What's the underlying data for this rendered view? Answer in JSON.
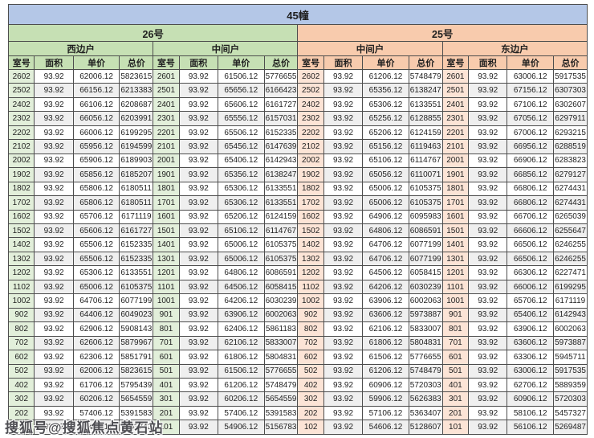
{
  "title": "45幢",
  "watermark": "搜狐号@搜狐焦点黄石站",
  "columns": [
    "室号",
    "面积",
    "单价",
    "总价"
  ],
  "colors": {
    "header_bg": "#b4c7e7",
    "green_bg": "#c6e0b4",
    "orange_bg": "#f8cbad",
    "room_green": "#e2efda",
    "room_orange": "#fce4d6",
    "stripe": "#efefef"
  },
  "sections": [
    {
      "label": "26号",
      "groups": [
        {
          "label": "西边户",
          "rows": [
            [
              "2602",
              "93.92",
              "62006.12",
              "5823615"
            ],
            [
              "2502",
              "93.92",
              "66156.12",
              "6213383"
            ],
            [
              "2402",
              "93.92",
              "66106.12",
              "6208687"
            ],
            [
              "2302",
              "93.92",
              "66056.12",
              "6203991"
            ],
            [
              "2202",
              "93.92",
              "66006.12",
              "6199295"
            ],
            [
              "2102",
              "93.92",
              "65956.12",
              "6194599"
            ],
            [
              "2002",
              "93.92",
              "65906.12",
              "6189903"
            ],
            [
              "1902",
              "93.92",
              "65856.12",
              "6185207"
            ],
            [
              "1802",
              "93.92",
              "65806.12",
              "6180511"
            ],
            [
              "1702",
              "93.92",
              "65806.12",
              "6180511"
            ],
            [
              "1602",
              "93.92",
              "65706.12",
              "6171119"
            ],
            [
              "1502",
              "93.92",
              "65606.12",
              "6161727"
            ],
            [
              "1402",
              "93.92",
              "65506.12",
              "6152335"
            ],
            [
              "1302",
              "93.92",
              "65506.12",
              "6152335"
            ],
            [
              "1202",
              "93.92",
              "65306.12",
              "6133551"
            ],
            [
              "1102",
              "93.92",
              "65006.12",
              "6105375"
            ],
            [
              "1002",
              "93.92",
              "64706.12",
              "6077199"
            ],
            [
              "902",
              "93.92",
              "64406.12",
              "6049023"
            ],
            [
              "802",
              "93.92",
              "62906.12",
              "5908143"
            ],
            [
              "702",
              "93.92",
              "62606.12",
              "5879967"
            ],
            [
              "602",
              "93.92",
              "62306.12",
              "5851791"
            ],
            [
              "502",
              "93.92",
              "62006.12",
              "5823615"
            ],
            [
              "402",
              "93.92",
              "61706.12",
              "5795439"
            ],
            [
              "302",
              "93.92",
              "60206.12",
              "5654559"
            ],
            [
              "202",
              "93.92",
              "57406.12",
              "5391583"
            ],
            [
              "102",
              "93.92",
              "55406.12",
              "5203743"
            ]
          ]
        },
        {
          "label": "中间户",
          "rows": [
            [
              "2601",
              "93.92",
              "61506.12",
              "5776655"
            ],
            [
              "2501",
              "93.92",
              "65656.12",
              "6166423"
            ],
            [
              "2401",
              "93.92",
              "65606.12",
              "6161727"
            ],
            [
              "2301",
              "93.92",
              "65556.12",
              "6157031"
            ],
            [
              "2201",
              "93.92",
              "65506.12",
              "6152335"
            ],
            [
              "2101",
              "93.92",
              "65456.12",
              "6147639"
            ],
            [
              "2001",
              "93.92",
              "65406.12",
              "6142943"
            ],
            [
              "1901",
              "93.92",
              "65356.12",
              "6138247"
            ],
            [
              "1801",
              "93.92",
              "65306.12",
              "6133551"
            ],
            [
              "1701",
              "93.92",
              "65306.12",
              "6133551"
            ],
            [
              "1601",
              "93.92",
              "65206.12",
              "6124159"
            ],
            [
              "1501",
              "93.92",
              "65106.12",
              "6114767"
            ],
            [
              "1401",
              "93.92",
              "65006.12",
              "6105375"
            ],
            [
              "1301",
              "93.92",
              "65006.12",
              "6105375"
            ],
            [
              "1201",
              "93.92",
              "64806.12",
              "6086591"
            ],
            [
              "1101",
              "93.92",
              "64506.12",
              "6058415"
            ],
            [
              "1001",
              "93.92",
              "64206.12",
              "6030239"
            ],
            [
              "901",
              "93.92",
              "63906.12",
              "6002063"
            ],
            [
              "801",
              "93.92",
              "62406.12",
              "5861183"
            ],
            [
              "701",
              "93.92",
              "62106.12",
              "5833007"
            ],
            [
              "601",
              "93.92",
              "61806.12",
              "5804831"
            ],
            [
              "501",
              "93.92",
              "61506.12",
              "5776655"
            ],
            [
              "401",
              "93.92",
              "61206.12",
              "5748479"
            ],
            [
              "301",
              "93.92",
              "60206.12",
              "5654559"
            ],
            [
              "201",
              "93.92",
              "57406.12",
              "5391583"
            ],
            [
              "101",
              "93.92",
              "54906.12",
              "5156783"
            ]
          ]
        }
      ]
    },
    {
      "label": "25号",
      "groups": [
        {
          "label": "中间户",
          "rows": [
            [
              "2602",
              "93.92",
              "61206.12",
              "5748479"
            ],
            [
              "2502",
              "93.92",
              "65356.12",
              "6138247"
            ],
            [
              "2402",
              "93.92",
              "65306.12",
              "6133551"
            ],
            [
              "2302",
              "93.92",
              "65256.12",
              "6128855"
            ],
            [
              "2202",
              "93.92",
              "65206.12",
              "6124159"
            ],
            [
              "2102",
              "93.92",
              "65156.12",
              "6119463"
            ],
            [
              "2002",
              "93.92",
              "65106.12",
              "6114767"
            ],
            [
              "1902",
              "93.92",
              "65056.12",
              "6110071"
            ],
            [
              "1802",
              "93.92",
              "65006.12",
              "6105375"
            ],
            [
              "1702",
              "93.92",
              "65006.12",
              "6105375"
            ],
            [
              "1602",
              "93.92",
              "64906.12",
              "6095983"
            ],
            [
              "1502",
              "93.92",
              "64806.12",
              "6086591"
            ],
            [
              "1402",
              "93.92",
              "64706.12",
              "6077199"
            ],
            [
              "1302",
              "93.92",
              "64706.12",
              "6077199"
            ],
            [
              "1202",
              "93.92",
              "64506.12",
              "6058415"
            ],
            [
              "1102",
              "93.92",
              "64206.12",
              "6030239"
            ],
            [
              "1002",
              "93.92",
              "63906.12",
              "6002063"
            ],
            [
              "902",
              "93.92",
              "63606.12",
              "5973887"
            ],
            [
              "802",
              "93.92",
              "62106.12",
              "5833007"
            ],
            [
              "702",
              "93.92",
              "61806.12",
              "5804831"
            ],
            [
              "602",
              "93.92",
              "61506.12",
              "5776655"
            ],
            [
              "502",
              "93.92",
              "61206.12",
              "5748479"
            ],
            [
              "402",
              "93.92",
              "60906.12",
              "5720303"
            ],
            [
              "302",
              "93.92",
              "59906.12",
              "5626383"
            ],
            [
              "202",
              "93.92",
              "57106.12",
              "5363407"
            ],
            [
              "102",
              "93.92",
              "54606.12",
              "5128607"
            ]
          ]
        },
        {
          "label": "东边户",
          "rows": [
            [
              "2601",
              "93.92",
              "63006.12",
              "5917535"
            ],
            [
              "2501",
              "93.92",
              "67156.12",
              "6307303"
            ],
            [
              "2401",
              "93.92",
              "67106.12",
              "6302607"
            ],
            [
              "2301",
              "93.92",
              "67056.12",
              "6297911"
            ],
            [
              "2201",
              "93.92",
              "67006.12",
              "6293215"
            ],
            [
              "2101",
              "93.92",
              "66956.12",
              "6288519"
            ],
            [
              "2001",
              "93.92",
              "66906.12",
              "6283823"
            ],
            [
              "1901",
              "93.92",
              "66856.12",
              "6279127"
            ],
            [
              "1801",
              "93.92",
              "66806.12",
              "6274431"
            ],
            [
              "1701",
              "93.92",
              "66806.12",
              "6274431"
            ],
            [
              "1601",
              "93.92",
              "66706.12",
              "6265039"
            ],
            [
              "1501",
              "93.92",
              "66606.12",
              "6255647"
            ],
            [
              "1401",
              "93.92",
              "66506.12",
              "6246255"
            ],
            [
              "1301",
              "93.92",
              "66506.12",
              "6246255"
            ],
            [
              "1201",
              "93.92",
              "66306.12",
              "6227471"
            ],
            [
              "1101",
              "93.92",
              "66006.12",
              "6199295"
            ],
            [
              "1001",
              "93.92",
              "65706.12",
              "6171119"
            ],
            [
              "901",
              "93.92",
              "65406.12",
              "6142943"
            ],
            [
              "801",
              "93.92",
              "63906.12",
              "6002063"
            ],
            [
              "701",
              "93.92",
              "63606.12",
              "5973887"
            ],
            [
              "601",
              "93.92",
              "63306.12",
              "5945711"
            ],
            [
              "501",
              "93.92",
              "63006.12",
              "5917535"
            ],
            [
              "401",
              "93.92",
              "62706.12",
              "5889359"
            ],
            [
              "301",
              "93.92",
              "60906.12",
              "5720303"
            ],
            [
              "201",
              "93.92",
              "58106.12",
              "5457327"
            ],
            [
              "101",
              "93.92",
              "56106.12",
              "5269487"
            ]
          ]
        }
      ]
    }
  ]
}
